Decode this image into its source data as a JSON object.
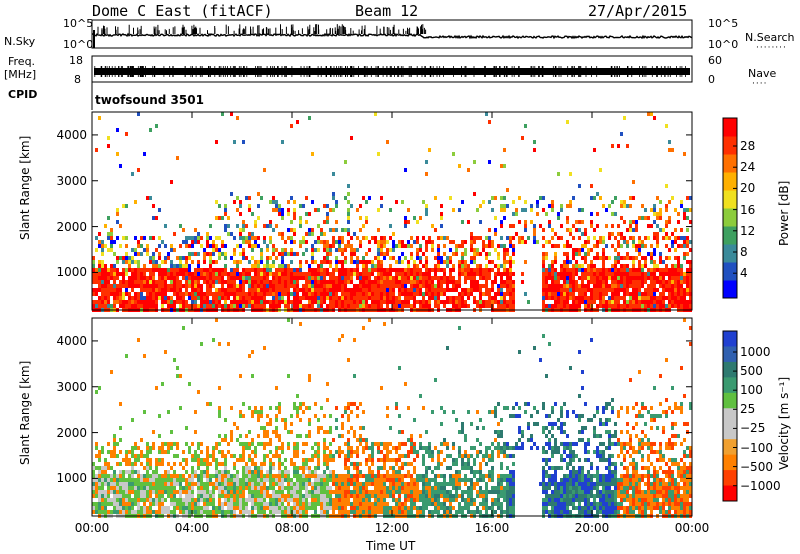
{
  "header": {
    "title": "Dome C East (fitACF)",
    "beam": "Beam 12",
    "date": "27/Apr/2015"
  },
  "top_panels": {
    "nsky_label": "N.Sky",
    "nsky_ticks": [
      "10^5",
      "10^0"
    ],
    "nsearch_label": "N.Search",
    "nsearch_ticks": [
      "10^5",
      "10^0"
    ],
    "freq_label": "Freq.",
    "freq_unit": "[MHz]",
    "freq_ticks": [
      "18",
      "8"
    ],
    "nave_label": "Nave",
    "nave_ticks": [
      "60",
      "0"
    ],
    "cpid_label": "CPID",
    "cpid_value": "twofsound 3501"
  },
  "chart_data": [
    {
      "type": "heatmap",
      "name": "power",
      "ylabel": "Slant Range [km]",
      "xlabel": "Time UT",
      "x_ticks": [
        "00:00",
        "04:00",
        "08:00",
        "12:00",
        "16:00",
        "20:00",
        "00:00"
      ],
      "y_ticks": [
        1000,
        2000,
        3000,
        4000
      ],
      "ylim": [
        180,
        4500
      ],
      "colorbar": {
        "label": "Power [dB]",
        "ticks": [
          "28",
          "24",
          "20",
          "16",
          "12",
          "8",
          "4"
        ],
        "colors": [
          "#0000ff",
          "#2050c0",
          "#3a8a9a",
          "#3ea060",
          "#8ccc3c",
          "#f0e020",
          "#ffb000",
          "#ff7000",
          "#ff3000",
          "#ff0000"
        ]
      }
    },
    {
      "type": "heatmap",
      "name": "velocity",
      "ylabel": "Slant Range [km]",
      "xlabel": "Time UT",
      "x_ticks": [
        "00:00",
        "04:00",
        "08:00",
        "12:00",
        "16:00",
        "20:00",
        "00:00"
      ],
      "y_ticks": [
        1000,
        2000,
        3000,
        4000
      ],
      "ylim": [
        180,
        4500
      ],
      "colorbar": {
        "label": "Velocity [m s⁻¹]",
        "ticks": [
          "1000",
          "500",
          "100",
          "25",
          "−25",
          "−100",
          "−500",
          "−1000"
        ],
        "colors": [
          "#ff0000",
          "#ff4000",
          "#ff8000",
          "#f0a030",
          "#c8c8c8",
          "#c8c8c8",
          "#60c040",
          "#3a9a70",
          "#2e7a70",
          "#3060b0",
          "#2040d0"
        ]
      }
    }
  ],
  "colors": {
    "power_red": "#ff1a00",
    "velocity_green": "#5cc83c",
    "velocity_teal": "#2e8a7a",
    "velocity_orange": "#f59a20",
    "ground_grey": "#c8c8c8"
  }
}
